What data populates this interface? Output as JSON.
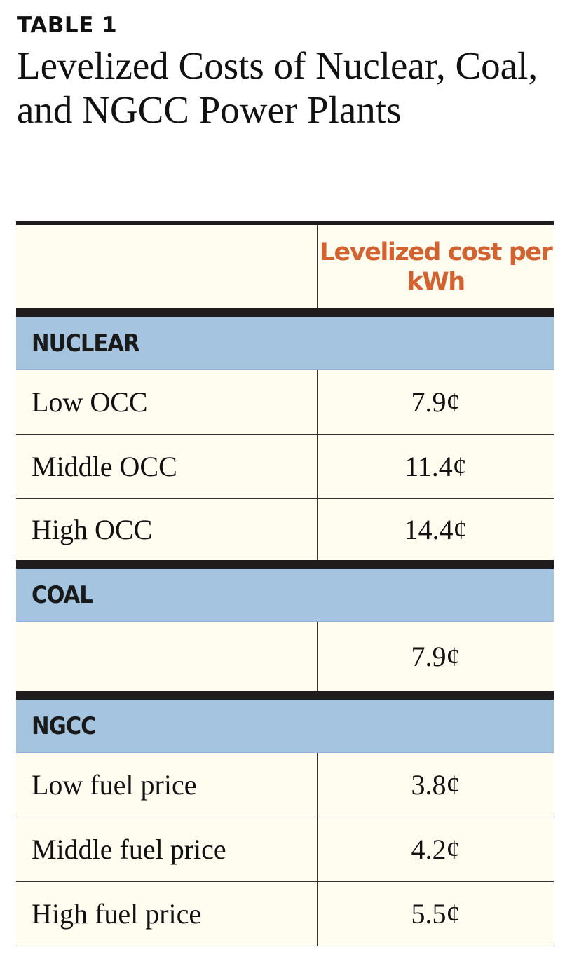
{
  "table_label": "TABLE 1",
  "title": "Levelized Costs of Nuclear, Coal, and NGCC Power Plants",
  "column_header": "Levelized cost per kWh",
  "colors": {
    "header_text": "#d2622f",
    "section_bg": "#a4c4e0",
    "cell_bg": "#fffcf0",
    "rule": "#1e1c1d"
  },
  "sections": [
    {
      "name": "NUCLEAR",
      "rows": [
        {
          "label": "Low OCC",
          "value": "7.9¢"
        },
        {
          "label": "Middle OCC",
          "value": "11.4¢"
        },
        {
          "label": "High OCC",
          "value": "14.4¢"
        }
      ]
    },
    {
      "name": "COAL",
      "rows": [
        {
          "label": "",
          "value": "7.9¢"
        }
      ]
    },
    {
      "name": "NGCC",
      "rows": [
        {
          "label": "Low fuel price",
          "value": "3.8¢"
        },
        {
          "label": "Middle fuel price",
          "value": "4.2¢"
        },
        {
          "label": "High fuel price",
          "value": "5.5¢"
        }
      ]
    }
  ]
}
